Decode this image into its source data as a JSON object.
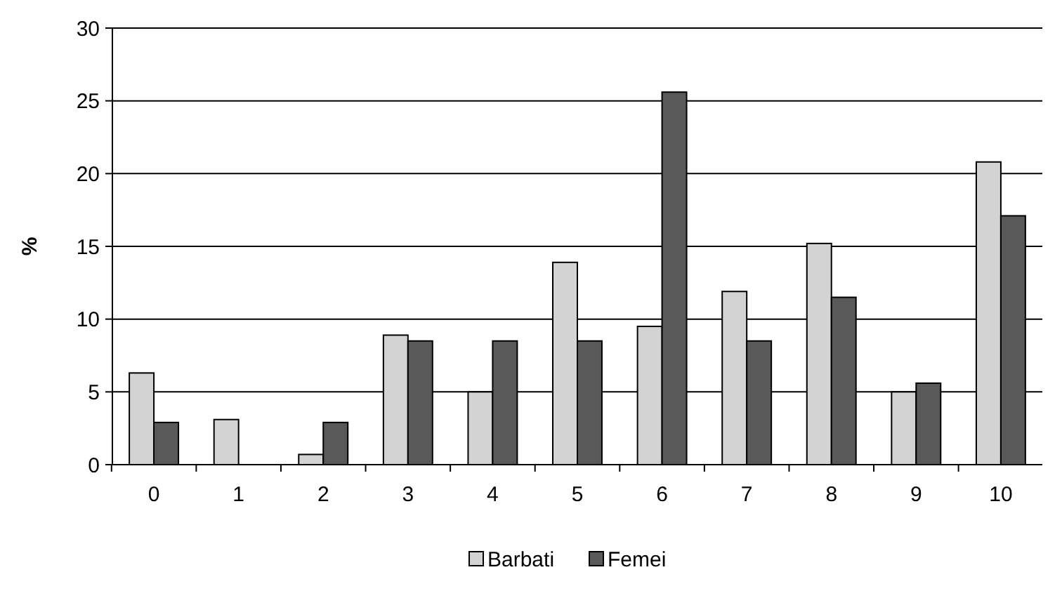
{
  "chart_data": {
    "type": "bar",
    "ylabel": "%",
    "categories": [
      "0",
      "1",
      "2",
      "3",
      "4",
      "5",
      "6",
      "7",
      "8",
      "9",
      "10"
    ],
    "series": [
      {
        "name": "Barbati",
        "color": "#d3d3d3",
        "values": [
          6.3,
          3.1,
          0.7,
          8.9,
          5,
          13.9,
          9.5,
          11.9,
          15.2,
          5,
          20.8
        ]
      },
      {
        "name": "Femei",
        "color": "#595959",
        "values": [
          2.9,
          0,
          2.9,
          8.5,
          8.5,
          8.5,
          25.6,
          8.5,
          11.5,
          5.6,
          17.1
        ]
      }
    ],
    "ylim": [
      0,
      30
    ],
    "yticks": [
      0,
      5,
      10,
      15,
      20,
      25,
      30
    ],
    "grid": "y",
    "legend": "bottom"
  }
}
